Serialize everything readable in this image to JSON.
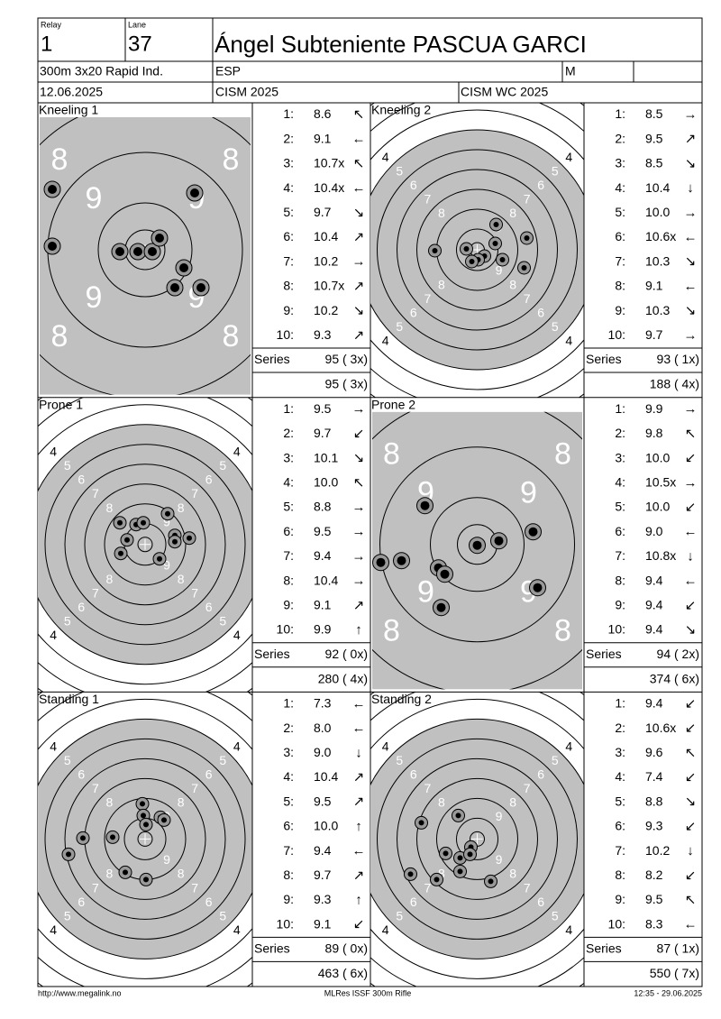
{
  "header": {
    "relay_label": "Relay",
    "relay": "1",
    "lane_label": "Lane",
    "lane": "37",
    "name": "Ángel Subteniente PASCUA GARCI",
    "event": "300m 3x20 Rapid Ind.",
    "nation": "ESP",
    "gender": "M",
    "date": "12.06.2025",
    "competition": "CISM 2025",
    "match": "CISM WC 2025"
  },
  "panels": [
    {
      "title": "Kneeling 1",
      "ring_labels": [
        "8",
        "9"
      ],
      "shots": [
        {
          "n": "1:",
          "score": "8.6",
          "dir": "↖"
        },
        {
          "n": "2:",
          "score": "9.1",
          "dir": "←"
        },
        {
          "n": "3:",
          "score": "10.7x",
          "dir": "↖"
        },
        {
          "n": "4:",
          "score": "10.4x",
          "dir": "←"
        },
        {
          "n": "5:",
          "score": "9.7",
          "dir": "↘"
        },
        {
          "n": "6:",
          "score": "10.4",
          "dir": "↗"
        },
        {
          "n": "7:",
          "score": "10.2",
          "dir": "→"
        },
        {
          "n": "8:",
          "score": "10.7x",
          "dir": "↗"
        },
        {
          "n": "9:",
          "score": "10.2",
          "dir": "↘"
        },
        {
          "n": "10:",
          "score": "9.3",
          "dir": "↗"
        }
      ],
      "series_label": "Series",
      "series": "95 ( 3x)",
      "total": "95 ( 3x)"
    },
    {
      "title": "Kneeling 2",
      "ring_labels": [
        "4",
        "5",
        "6",
        "7",
        "8",
        "9"
      ],
      "shots": [
        {
          "n": "1:",
          "score": "8.5",
          "dir": "→"
        },
        {
          "n": "2:",
          "score": "9.5",
          "dir": "↗"
        },
        {
          "n": "3:",
          "score": "8.5",
          "dir": "↘"
        },
        {
          "n": "4:",
          "score": "10.4",
          "dir": "↓"
        },
        {
          "n": "5:",
          "score": "10.0",
          "dir": "→"
        },
        {
          "n": "6:",
          "score": "10.6x",
          "dir": "←"
        },
        {
          "n": "7:",
          "score": "10.3",
          "dir": "↘"
        },
        {
          "n": "8:",
          "score": "9.1",
          "dir": "←"
        },
        {
          "n": "9:",
          "score": "10.3",
          "dir": "↘"
        },
        {
          "n": "10:",
          "score": "9.7",
          "dir": "→"
        }
      ],
      "series_label": "Series",
      "series": "93 ( 1x)",
      "total": "188 ( 4x)"
    },
    {
      "title": "Prone 1",
      "ring_labels": [
        "4",
        "5",
        "6",
        "7",
        "8",
        "9"
      ],
      "shots": [
        {
          "n": "1:",
          "score": "9.5",
          "dir": "→"
        },
        {
          "n": "2:",
          "score": "9.7",
          "dir": "↙"
        },
        {
          "n": "3:",
          "score": "10.1",
          "dir": "↘"
        },
        {
          "n": "4:",
          "score": "10.0",
          "dir": "↖"
        },
        {
          "n": "5:",
          "score": "8.8",
          "dir": "→"
        },
        {
          "n": "6:",
          "score": "9.5",
          "dir": "→"
        },
        {
          "n": "7:",
          "score": "9.4",
          "dir": "→"
        },
        {
          "n": "8:",
          "score": "10.4",
          "dir": "→"
        },
        {
          "n": "9:",
          "score": "9.1",
          "dir": "↗"
        },
        {
          "n": "10:",
          "score": "9.9",
          "dir": "↑"
        }
      ],
      "series_label": "Series",
      "series": "92 ( 0x)",
      "total": "280 ( 4x)"
    },
    {
      "title": "Prone 2",
      "ring_labels": [
        "8",
        "9"
      ],
      "shots": [
        {
          "n": "1:",
          "score": "9.9",
          "dir": "→"
        },
        {
          "n": "2:",
          "score": "9.8",
          "dir": "↖"
        },
        {
          "n": "3:",
          "score": "10.0",
          "dir": "↙"
        },
        {
          "n": "4:",
          "score": "10.5x",
          "dir": "→"
        },
        {
          "n": "5:",
          "score": "10.0",
          "dir": "↙"
        },
        {
          "n": "6:",
          "score": "9.0",
          "dir": "←"
        },
        {
          "n": "7:",
          "score": "10.8x",
          "dir": "↓"
        },
        {
          "n": "8:",
          "score": "9.4",
          "dir": "←"
        },
        {
          "n": "9:",
          "score": "9.4",
          "dir": "↙"
        },
        {
          "n": "10:",
          "score": "9.4",
          "dir": "↘"
        }
      ],
      "series_label": "Series",
      "series": "94 ( 2x)",
      "total": "374 ( 6x)"
    },
    {
      "title": "Standing 1",
      "ring_labels": [
        "4",
        "5",
        "6",
        "7",
        "8",
        "9"
      ],
      "shots": [
        {
          "n": "1:",
          "score": "7.3",
          "dir": "←"
        },
        {
          "n": "2:",
          "score": "8.0",
          "dir": "←"
        },
        {
          "n": "3:",
          "score": "9.0",
          "dir": "↓"
        },
        {
          "n": "4:",
          "score": "10.4",
          "dir": "↗"
        },
        {
          "n": "5:",
          "score": "9.5",
          "dir": "↗"
        },
        {
          "n": "6:",
          "score": "10.0",
          "dir": "↑"
        },
        {
          "n": "7:",
          "score": "9.4",
          "dir": "←"
        },
        {
          "n": "8:",
          "score": "9.7",
          "dir": "↗"
        },
        {
          "n": "9:",
          "score": "9.3",
          "dir": "↑"
        },
        {
          "n": "10:",
          "score": "9.1",
          "dir": "↙"
        }
      ],
      "series_label": "Series",
      "series": "89 ( 0x)",
      "total": "463 ( 6x)"
    },
    {
      "title": "Standing 2",
      "ring_labels": [
        "4",
        "5",
        "6",
        "7",
        "8",
        "9"
      ],
      "shots": [
        {
          "n": "1:",
          "score": "9.4",
          "dir": "↙"
        },
        {
          "n": "2:",
          "score": "10.6x",
          "dir": "↙"
        },
        {
          "n": "3:",
          "score": "9.6",
          "dir": "↖"
        },
        {
          "n": "4:",
          "score": "7.4",
          "dir": "↙"
        },
        {
          "n": "5:",
          "score": "8.8",
          "dir": "↘"
        },
        {
          "n": "6:",
          "score": "9.3",
          "dir": "↙"
        },
        {
          "n": "7:",
          "score": "10.2",
          "dir": "↓"
        },
        {
          "n": "8:",
          "score": "8.2",
          "dir": "↙"
        },
        {
          "n": "9:",
          "score": "9.5",
          "dir": "↖"
        },
        {
          "n": "10:",
          "score": "8.3",
          "dir": "←"
        }
      ],
      "series_label": "Series",
      "series": "87 ( 1x)",
      "total": "550 ( 7x)"
    }
  ],
  "footer": {
    "left": "http://www.megalink.no",
    "center": "MLRes ISSF 300m Rifle",
    "right": "12:35 - 29.06.2025"
  }
}
